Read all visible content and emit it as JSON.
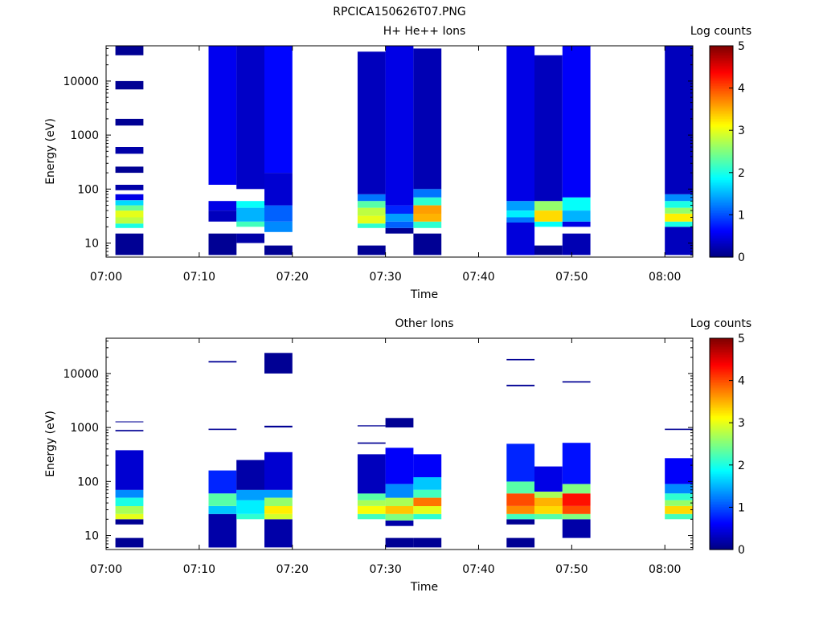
{
  "figure_title": "RPCICA150626T07.PNG",
  "chart_data": [
    {
      "type": "heatmap",
      "title": "H+ He++ Ions",
      "xlabel": "Time",
      "ylabel": "Energy (eV)",
      "y_scale": "log",
      "ylim": [
        5.5,
        45000
      ],
      "y_ticks": [
        10,
        100,
        1000,
        10000
      ],
      "y_tick_labels": [
        "10",
        "100",
        "1000",
        "10000"
      ],
      "x_range": [
        "07:00",
        "08:03"
      ],
      "x_tick_labels": [
        "07:00",
        "07:10",
        "07:20",
        "07:30",
        "07:40",
        "07:50",
        "08:00"
      ],
      "colorbar": {
        "label": "Log counts",
        "min": 0,
        "max": 5,
        "tick_labels": [
          "0",
          "1",
          "2",
          "3",
          "4",
          "5"
        ],
        "colormap": "jet"
      },
      "scans": [
        {
          "start": "07:01",
          "end": "07:04",
          "cells": [
            {
              "e_lo": 6,
              "e_hi": 15,
              "v": 0.1
            },
            {
              "e_lo": 19,
              "e_hi": 23,
              "v": 2.0
            },
            {
              "e_lo": 23,
              "e_hi": 30,
              "v": 2.8
            },
            {
              "e_lo": 30,
              "e_hi": 40,
              "v": 3.0
            },
            {
              "e_lo": 40,
              "e_hi": 50,
              "v": 2.4
            },
            {
              "e_lo": 50,
              "e_hi": 62,
              "v": 1.7
            },
            {
              "e_lo": 62,
              "e_hi": 80,
              "v": 0.5
            },
            {
              "e_lo": 95,
              "e_hi": 120,
              "v": 0.2
            },
            {
              "e_lo": 200,
              "e_hi": 260,
              "v": 0.1
            },
            {
              "e_lo": 450,
              "e_hi": 600,
              "v": 0.2
            },
            {
              "e_lo": 1500,
              "e_hi": 2000,
              "v": 0.1
            },
            {
              "e_lo": 7000,
              "e_hi": 10000,
              "v": 0.1
            },
            {
              "e_lo": 30000,
              "e_hi": 45000,
              "v": 0.1
            }
          ]
        },
        {
          "start": "07:11",
          "end": "07:14",
          "cells": [
            {
              "e_lo": 6,
              "e_hi": 15,
              "v": 0.1
            },
            {
              "e_lo": 25,
              "e_hi": 40,
              "v": 0.3
            },
            {
              "e_lo": 40,
              "e_hi": 60,
              "v": 0.5
            },
            {
              "e_lo": 120,
              "e_hi": 45000,
              "v": 0.55
            }
          ]
        },
        {
          "start": "07:14",
          "end": "07:17",
          "cells": [
            {
              "e_lo": 10,
              "e_hi": 15,
              "v": 0.2
            },
            {
              "e_lo": 20,
              "e_hi": 25,
              "v": 2.2
            },
            {
              "e_lo": 25,
              "e_hi": 45,
              "v": 1.5
            },
            {
              "e_lo": 45,
              "e_hi": 60,
              "v": 1.9
            },
            {
              "e_lo": 100,
              "e_hi": 45000,
              "v": 0.35
            }
          ]
        },
        {
          "start": "07:17",
          "end": "07:20",
          "cells": [
            {
              "e_lo": 6,
              "e_hi": 9,
              "v": 0.1
            },
            {
              "e_lo": 16,
              "e_hi": 25,
              "v": 1.3
            },
            {
              "e_lo": 25,
              "e_hi": 50,
              "v": 1.1
            },
            {
              "e_lo": 50,
              "e_hi": 200,
              "v": 0.4
            },
            {
              "e_lo": 200,
              "e_hi": 45000,
              "v": 0.65
            }
          ]
        },
        {
          "start": "07:27",
          "end": "07:30",
          "cells": [
            {
              "e_lo": 6,
              "e_hi": 9,
              "v": 0.1
            },
            {
              "e_lo": 19,
              "e_hi": 23,
              "v": 2.1
            },
            {
              "e_lo": 23,
              "e_hi": 32,
              "v": 3.0
            },
            {
              "e_lo": 32,
              "e_hi": 45,
              "v": 2.8
            },
            {
              "e_lo": 45,
              "e_hi": 60,
              "v": 2.3
            },
            {
              "e_lo": 60,
              "e_hi": 80,
              "v": 1.2
            },
            {
              "e_lo": 80,
              "e_hi": 35000,
              "v": 0.3
            }
          ]
        },
        {
          "start": "07:30",
          "end": "07:33",
          "cells": [
            {
              "e_lo": 15,
              "e_hi": 19,
              "v": 0.1
            },
            {
              "e_lo": 19,
              "e_hi": 25,
              "v": 1.1
            },
            {
              "e_lo": 25,
              "e_hi": 35,
              "v": 1.4
            },
            {
              "e_lo": 35,
              "e_hi": 50,
              "v": 0.8
            },
            {
              "e_lo": 50,
              "e_hi": 45000,
              "v": 0.5
            }
          ]
        },
        {
          "start": "07:33",
          "end": "07:36",
          "cells": [
            {
              "e_lo": 6,
              "e_hi": 15,
              "v": 0.1
            },
            {
              "e_lo": 19,
              "e_hi": 25,
              "v": 2.1
            },
            {
              "e_lo": 25,
              "e_hi": 35,
              "v": 3.5
            },
            {
              "e_lo": 35,
              "e_hi": 50,
              "v": 3.6
            },
            {
              "e_lo": 50,
              "e_hi": 70,
              "v": 2.1
            },
            {
              "e_lo": 70,
              "e_hi": 100,
              "v": 1.2
            },
            {
              "e_lo": 100,
              "e_hi": 40000,
              "v": 0.25
            }
          ]
        },
        {
          "start": "07:43",
          "end": "07:46",
          "cells": [
            {
              "e_lo": 6,
              "e_hi": 24,
              "v": 0.45
            },
            {
              "e_lo": 24,
              "e_hi": 30,
              "v": 1.2
            },
            {
              "e_lo": 30,
              "e_hi": 40,
              "v": 1.8
            },
            {
              "e_lo": 40,
              "e_hi": 60,
              "v": 1.4
            },
            {
              "e_lo": 60,
              "e_hi": 45000,
              "v": 0.5
            }
          ]
        },
        {
          "start": "07:46",
          "end": "07:49",
          "cells": [
            {
              "e_lo": 6,
              "e_hi": 9,
              "v": 0.1
            },
            {
              "e_lo": 20,
              "e_hi": 25,
              "v": 1.9
            },
            {
              "e_lo": 25,
              "e_hi": 40,
              "v": 3.3
            },
            {
              "e_lo": 40,
              "e_hi": 60,
              "v": 2.6
            },
            {
              "e_lo": 60,
              "e_hi": 30000,
              "v": 0.3
            }
          ]
        },
        {
          "start": "07:49",
          "end": "07:52",
          "cells": [
            {
              "e_lo": 6,
              "e_hi": 15,
              "v": 0.25
            },
            {
              "e_lo": 20,
              "e_hi": 25,
              "v": 0.5
            },
            {
              "e_lo": 25,
              "e_hi": 40,
              "v": 1.5
            },
            {
              "e_lo": 40,
              "e_hi": 70,
              "v": 1.9
            },
            {
              "e_lo": 70,
              "e_hi": 45000,
              "v": 0.6
            }
          ]
        },
        {
          "start": "08:00",
          "end": "08:03",
          "cells": [
            {
              "e_lo": 6,
              "e_hi": 20,
              "v": 0.3
            },
            {
              "e_lo": 20,
              "e_hi": 25,
              "v": 2.0
            },
            {
              "e_lo": 25,
              "e_hi": 35,
              "v": 3.2
            },
            {
              "e_lo": 35,
              "e_hi": 45,
              "v": 2.6
            },
            {
              "e_lo": 45,
              "e_hi": 60,
              "v": 2.0
            },
            {
              "e_lo": 60,
              "e_hi": 80,
              "v": 1.3
            },
            {
              "e_lo": 80,
              "e_hi": 45000,
              "v": 0.3
            }
          ]
        }
      ]
    },
    {
      "type": "heatmap",
      "title": "Other Ions",
      "xlabel": "Time",
      "ylabel": "Energy (eV)",
      "y_scale": "log",
      "ylim": [
        5.5,
        45000
      ],
      "y_ticks": [
        10,
        100,
        1000,
        10000
      ],
      "y_tick_labels": [
        "10",
        "100",
        "1000",
        "10000"
      ],
      "x_range": [
        "07:00",
        "08:03"
      ],
      "x_tick_labels": [
        "07:00",
        "07:10",
        "07:20",
        "07:30",
        "07:40",
        "07:50",
        "08:00"
      ],
      "colorbar": {
        "label": "Log counts",
        "min": 0,
        "max": 5,
        "tick_labels": [
          "0",
          "1",
          "2",
          "3",
          "4",
          "5"
        ],
        "colormap": "jet"
      },
      "scans": [
        {
          "start": "07:01",
          "end": "07:04",
          "cells": [
            {
              "e_lo": 6,
              "e_hi": 9,
              "v": 0.1
            },
            {
              "e_lo": 16,
              "e_hi": 20,
              "v": 0.1
            },
            {
              "e_lo": 20,
              "e_hi": 25,
              "v": 3.0
            },
            {
              "e_lo": 25,
              "e_hi": 35,
              "v": 2.7
            },
            {
              "e_lo": 35,
              "e_hi": 50,
              "v": 2.0
            },
            {
              "e_lo": 50,
              "e_hi": 70,
              "v": 1.3
            },
            {
              "e_lo": 70,
              "e_hi": 380,
              "v": 0.4
            },
            {
              "e_lo": 850,
              "e_hi": 900,
              "v": 0.1
            },
            {
              "e_lo": 1250,
              "e_hi": 1300,
              "v": 0.1
            }
          ]
        },
        {
          "start": "07:11",
          "end": "07:14",
          "cells": [
            {
              "e_lo": 6,
              "e_hi": 25,
              "v": 0.2
            },
            {
              "e_lo": 25,
              "e_hi": 35,
              "v": 1.6
            },
            {
              "e_lo": 35,
              "e_hi": 60,
              "v": 2.3
            },
            {
              "e_lo": 60,
              "e_hi": 160,
              "v": 0.8
            },
            {
              "e_lo": 900,
              "e_hi": 950,
              "v": 0.1
            },
            {
              "e_lo": 16000,
              "e_hi": 17000,
              "v": 0.1
            }
          ]
        },
        {
          "start": "07:14",
          "end": "07:17",
          "cells": [
            {
              "e_lo": 20,
              "e_hi": 25,
              "v": 2.1
            },
            {
              "e_lo": 25,
              "e_hi": 45,
              "v": 1.8
            },
            {
              "e_lo": 45,
              "e_hi": 70,
              "v": 1.4
            },
            {
              "e_lo": 70,
              "e_hi": 250,
              "v": 0.2
            }
          ]
        },
        {
          "start": "07:17",
          "end": "07:20",
          "cells": [
            {
              "e_lo": 6,
              "e_hi": 20,
              "v": 0.2
            },
            {
              "e_lo": 20,
              "e_hi": 25,
              "v": 2.9
            },
            {
              "e_lo": 25,
              "e_hi": 35,
              "v": 3.2
            },
            {
              "e_lo": 35,
              "e_hi": 50,
              "v": 2.6
            },
            {
              "e_lo": 50,
              "e_hi": 70,
              "v": 1.4
            },
            {
              "e_lo": 70,
              "e_hi": 350,
              "v": 0.4
            },
            {
              "e_lo": 1000,
              "e_hi": 1080,
              "v": 0.1
            },
            {
              "e_lo": 10000,
              "e_hi": 24000,
              "v": 0.1
            }
          ]
        },
        {
          "start": "07:27",
          "end": "07:30",
          "cells": [
            {
              "e_lo": 20,
              "e_hi": 25,
              "v": 2.2
            },
            {
              "e_lo": 25,
              "e_hi": 35,
              "v": 3.1
            },
            {
              "e_lo": 35,
              "e_hi": 45,
              "v": 2.7
            },
            {
              "e_lo": 45,
              "e_hi": 60,
              "v": 2.3
            },
            {
              "e_lo": 60,
              "e_hi": 320,
              "v": 0.3
            },
            {
              "e_lo": 500,
              "e_hi": 530,
              "v": 0.1
            },
            {
              "e_lo": 1050,
              "e_hi": 1100,
              "v": 0.1
            }
          ]
        },
        {
          "start": "07:30",
          "end": "07:33",
          "cells": [
            {
              "e_lo": 6,
              "e_hi": 9,
              "v": 0.1
            },
            {
              "e_lo": 15,
              "e_hi": 19,
              "v": 0.2
            },
            {
              "e_lo": 19,
              "e_hi": 25,
              "v": 2.5
            },
            {
              "e_lo": 25,
              "e_hi": 35,
              "v": 3.4
            },
            {
              "e_lo": 35,
              "e_hi": 50,
              "v": 2.7
            },
            {
              "e_lo": 50,
              "e_hi": 90,
              "v": 1.3
            },
            {
              "e_lo": 90,
              "e_hi": 420,
              "v": 0.6
            },
            {
              "e_lo": 1000,
              "e_hi": 1500,
              "v": 0.1
            }
          ]
        },
        {
          "start": "07:33",
          "end": "07:36",
          "cells": [
            {
              "e_lo": 6,
              "e_hi": 9,
              "v": 0.1
            },
            {
              "e_lo": 20,
              "e_hi": 25,
              "v": 2.1
            },
            {
              "e_lo": 25,
              "e_hi": 35,
              "v": 3.0
            },
            {
              "e_lo": 35,
              "e_hi": 50,
              "v": 3.8
            },
            {
              "e_lo": 50,
              "e_hi": 70,
              "v": 2.2
            },
            {
              "e_lo": 70,
              "e_hi": 120,
              "v": 1.6
            },
            {
              "e_lo": 120,
              "e_hi": 320,
              "v": 0.6
            }
          ]
        },
        {
          "start": "07:43",
          "end": "07:46",
          "cells": [
            {
              "e_lo": 6,
              "e_hi": 9,
              "v": 0.1
            },
            {
              "e_lo": 16,
              "e_hi": 20,
              "v": 0.1
            },
            {
              "e_lo": 20,
              "e_hi": 25,
              "v": 2.2
            },
            {
              "e_lo": 25,
              "e_hi": 35,
              "v": 3.7
            },
            {
              "e_lo": 35,
              "e_hi": 60,
              "v": 4.0
            },
            {
              "e_lo": 60,
              "e_hi": 100,
              "v": 2.3
            },
            {
              "e_lo": 100,
              "e_hi": 500,
              "v": 0.8
            },
            {
              "e_lo": 5800,
              "e_hi": 6200,
              "v": 0.1
            },
            {
              "e_lo": 17500,
              "e_hi": 18500,
              "v": 0.1
            }
          ]
        },
        {
          "start": "07:46",
          "end": "07:49",
          "cells": [
            {
              "e_lo": 20,
              "e_hi": 25,
              "v": 2.3
            },
            {
              "e_lo": 25,
              "e_hi": 35,
              "v": 3.3
            },
            {
              "e_lo": 35,
              "e_hi": 50,
              "v": 3.5
            },
            {
              "e_lo": 50,
              "e_hi": 65,
              "v": 2.7
            },
            {
              "e_lo": 65,
              "e_hi": 190,
              "v": 0.5
            }
          ]
        },
        {
          "start": "07:49",
          "end": "07:52",
          "cells": [
            {
              "e_lo": 9,
              "e_hi": 20,
              "v": 0.2
            },
            {
              "e_lo": 20,
              "e_hi": 25,
              "v": 2.5
            },
            {
              "e_lo": 25,
              "e_hi": 35,
              "v": 4.0
            },
            {
              "e_lo": 35,
              "e_hi": 60,
              "v": 4.3
            },
            {
              "e_lo": 60,
              "e_hi": 90,
              "v": 2.5
            },
            {
              "e_lo": 90,
              "e_hi": 520,
              "v": 0.7
            },
            {
              "e_lo": 6800,
              "e_hi": 7200,
              "v": 0.1
            }
          ]
        },
        {
          "start": "08:00",
          "end": "08:03",
          "cells": [
            {
              "e_lo": 20,
              "e_hi": 25,
              "v": 2.2
            },
            {
              "e_lo": 25,
              "e_hi": 35,
              "v": 3.3
            },
            {
              "e_lo": 35,
              "e_hi": 45,
              "v": 2.6
            },
            {
              "e_lo": 45,
              "e_hi": 60,
              "v": 2.1
            },
            {
              "e_lo": 60,
              "e_hi": 90,
              "v": 1.3
            },
            {
              "e_lo": 90,
              "e_hi": 270,
              "v": 0.6
            },
            {
              "e_lo": 900,
              "e_hi": 950,
              "v": 0.1
            }
          ]
        }
      ]
    }
  ]
}
